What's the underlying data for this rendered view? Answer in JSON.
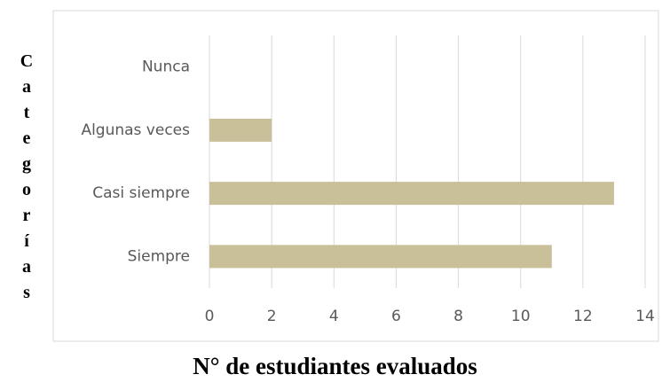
{
  "chart_data": {
    "type": "bar",
    "orientation": "horizontal",
    "categories": [
      "Nunca",
      "Algunas veces",
      "Casi siempre",
      "Siempre"
    ],
    "values": [
      0,
      2,
      13,
      11
    ],
    "color": "#c9bf98",
    "xlim": [
      0,
      14
    ],
    "xticks": [
      0,
      2,
      4,
      6,
      8,
      10,
      12,
      14
    ],
    "grid": true,
    "x_label": "N° de estudiantes evaluados",
    "y_label": "Categorías"
  }
}
